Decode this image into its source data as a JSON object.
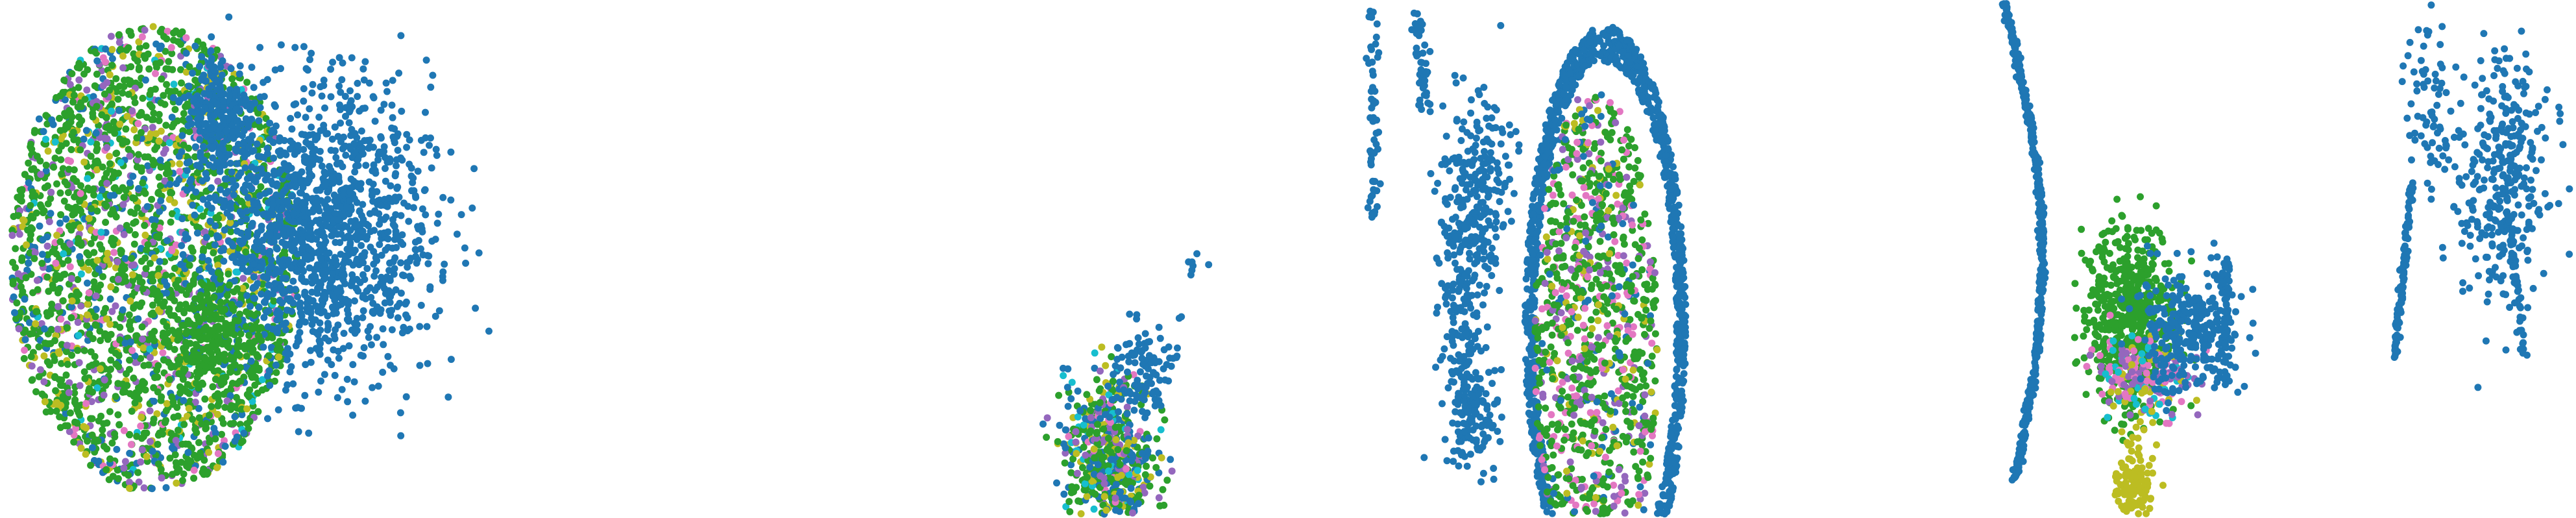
{
  "colors": {
    "background": "#ffffff",
    "blue": "#1f77b4",
    "green": "#2ca02c",
    "pink": "#e377c2",
    "purple": "#9467bd",
    "olive": "#bcbd22",
    "cyan": "#17becf"
  },
  "chart_data": [
    {
      "type": "scatter",
      "panel": 1,
      "grid": false,
      "axes": "hidden",
      "legend": "none",
      "xlim": [
        0,
        1
      ],
      "ylim": [
        0,
        1
      ],
      "clusters": [
        {
          "shape": "disc",
          "color": "mixed",
          "mix": {
            "green": 0.58,
            "blue": 0.12,
            "olive": 0.12,
            "purple": 0.1,
            "pink": 0.05,
            "cyan": 0.03
          },
          "center": [
            0.3,
            0.5
          ],
          "radius": [
            0.28,
            0.45
          ],
          "count": 2700
        },
        {
          "shape": "blob",
          "color": "blue",
          "center": [
            0.62,
            0.55
          ],
          "spread": [
            0.11,
            0.14
          ],
          "count": 1400
        },
        {
          "shape": "blob",
          "color": "blue",
          "center": [
            0.43,
            0.78
          ],
          "spread": [
            0.035,
            0.06
          ],
          "count": 230
        },
        {
          "shape": "blob",
          "color": "green",
          "center": [
            0.4,
            0.35
          ],
          "spread": [
            0.05,
            0.06
          ],
          "count": 240
        }
      ]
    },
    {
      "type": "scatter",
      "panel": 2,
      "grid": false,
      "axes": "hidden",
      "legend": "none",
      "xlim": [
        0,
        1
      ],
      "ylim": [
        0,
        1
      ],
      "clusters": [
        {
          "shape": "blob",
          "color": "mixed",
          "mix": {
            "green": 0.4,
            "blue": 0.25,
            "olive": 0.15,
            "purple": 0.1,
            "cyan": 0.05,
            "pink": 0.05
          },
          "center": [
            0.8,
            0.12
          ],
          "spread": [
            0.03,
            0.08
          ],
          "count": 600
        },
        {
          "shape": "blob",
          "color": "blue",
          "center": [
            0.84,
            0.28
          ],
          "spread": [
            0.02,
            0.05
          ],
          "count": 90
        },
        {
          "shape": "line",
          "color": "blue",
          "from": [
            0.85,
            0.16
          ],
          "to": [
            0.92,
            0.52
          ],
          "count": 20
        }
      ]
    },
    {
      "type": "scatter",
      "panel": 3,
      "grid": false,
      "axes": "hidden",
      "legend": "none",
      "xlim": [
        0,
        1
      ],
      "ylim": [
        0,
        1
      ],
      "clusters": [
        {
          "shape": "ring",
          "color": "blue",
          "center": [
            0.54,
            0.37
          ],
          "radius": [
            0.17,
            0.58
          ],
          "count": 1500
        },
        {
          "shape": "disc",
          "color": "mixed",
          "mix": {
            "green": 0.55,
            "blue": 0.1,
            "pink": 0.15,
            "purple": 0.12,
            "olive": 0.08
          },
          "center": [
            0.52,
            0.33
          ],
          "radius": [
            0.13,
            0.5
          ],
          "count": 1200
        },
        {
          "shape": "line",
          "color": "blue",
          "from": [
            0.05,
            0.58
          ],
          "to": [
            0.05,
            0.98
          ],
          "count": 60
        },
        {
          "shape": "line",
          "color": "blue",
          "from": [
            0.16,
            0.78
          ],
          "to": [
            0.14,
            0.98
          ],
          "count": 45
        },
        {
          "shape": "blob",
          "color": "blue",
          "center": [
            0.27,
            0.62
          ],
          "spread": [
            0.035,
            0.1
          ],
          "count": 260
        },
        {
          "shape": "blob",
          "color": "blue",
          "center": [
            0.25,
            0.22
          ],
          "spread": [
            0.03,
            0.06
          ],
          "count": 160
        },
        {
          "shape": "blob",
          "color": "blue",
          "center": [
            0.24,
            0.42
          ],
          "spread": [
            0.025,
            0.07
          ],
          "count": 90
        }
      ]
    },
    {
      "type": "scatter",
      "panel": 4,
      "grid": false,
      "axes": "hidden",
      "legend": "none",
      "xlim": [
        0,
        1
      ],
      "ylim": [
        0,
        1
      ],
      "clusters": [
        {
          "shape": "arc",
          "color": "blue",
          "from": [
            0.05,
            1.0
          ],
          "to": [
            0.08,
            0.07
          ],
          "bulge": 0.09,
          "count": 500
        },
        {
          "shape": "blob",
          "color": "green",
          "center": [
            0.4,
            0.38
          ],
          "spread": [
            0.06,
            0.09
          ],
          "count": 600
        },
        {
          "shape": "blob",
          "color": "mixed",
          "mix": {
            "pink": 0.3,
            "purple": 0.3,
            "olive": 0.2,
            "cyan": 0.2
          },
          "center": [
            0.43,
            0.27
          ],
          "spread": [
            0.07,
            0.04
          ],
          "count": 180
        },
        {
          "shape": "blob",
          "color": "olive",
          "center": [
            0.41,
            0.06
          ],
          "spread": [
            0.025,
            0.05
          ],
          "count": 130
        },
        {
          "shape": "blob",
          "color": "blue",
          "center": [
            0.56,
            0.36
          ],
          "spread": [
            0.07,
            0.06
          ],
          "count": 300
        },
        {
          "shape": "line",
          "color": "blue",
          "from": [
            0.66,
            0.26
          ],
          "to": [
            0.66,
            0.5
          ],
          "count": 70
        }
      ]
    },
    {
      "type": "scatter",
      "panel": 5,
      "grid": false,
      "axes": "hidden",
      "legend": "none",
      "xlim": [
        0,
        1
      ],
      "ylim": [
        0,
        1
      ],
      "clusters": [
        {
          "shape": "blob",
          "color": "blue",
          "center": [
            0.68,
            0.66
          ],
          "spread": [
            0.1,
            0.12
          ],
          "count": 320
        },
        {
          "shape": "line",
          "color": "blue",
          "from": [
            0.2,
            0.31
          ],
          "to": [
            0.28,
            0.65
          ],
          "count": 110
        },
        {
          "shape": "blob",
          "color": "blue",
          "center": [
            0.36,
            0.78
          ],
          "spread": [
            0.05,
            0.09
          ],
          "count": 70
        },
        {
          "shape": "line",
          "color": "blue",
          "from": [
            0.77,
            0.32
          ],
          "to": [
            0.7,
            0.6
          ],
          "count": 50
        }
      ]
    }
  ]
}
